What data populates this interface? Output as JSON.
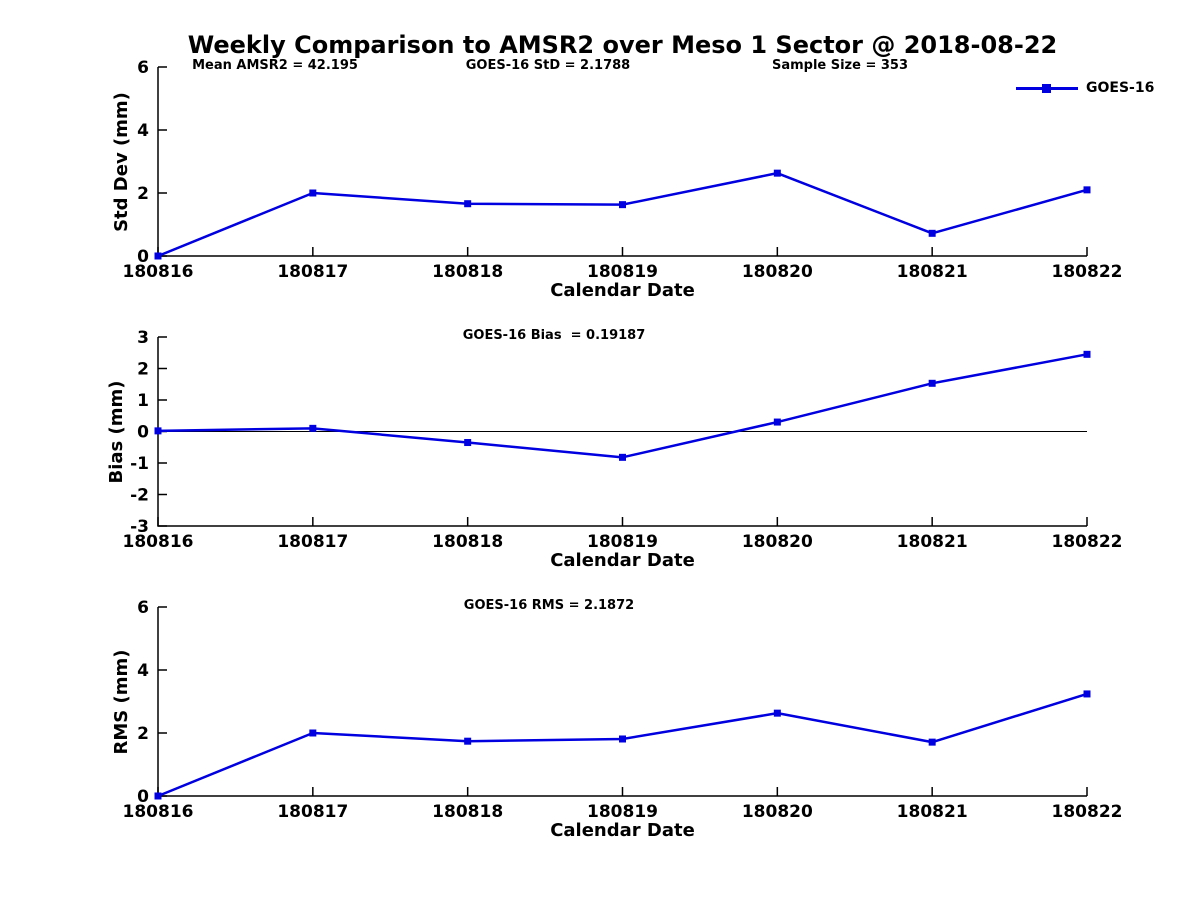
{
  "chart_data": {
    "type": "line",
    "title": "Weekly Comparison to AMSR2 over Meso 1 Sector @ 2018-08-22",
    "categories": [
      "180816",
      "180817",
      "180818",
      "180819",
      "180820",
      "180821",
      "180822"
    ],
    "xlabel": "Calendar Date",
    "grid": false,
    "marker": "square",
    "series_color": "#0000e0",
    "legend": {
      "label": "GOES-16",
      "position": "top-right"
    },
    "subplots": [
      {
        "ylabel": "Std Dev (mm)",
        "ylim": [
          0,
          6
        ],
        "yticks": [
          0,
          2,
          4,
          6
        ],
        "zero_line": false,
        "annotations": [
          {
            "text": "Mean AMSR2 = 42.195"
          },
          {
            "text": "GOES-16 StD = 2.1788"
          },
          {
            "text": "Sample Size = 353"
          }
        ],
        "series": [
          {
            "name": "GOES-16",
            "values": [
              0.0,
              2.0,
              1.66,
              1.63,
              2.63,
              0.72,
              2.1
            ]
          }
        ]
      },
      {
        "ylabel": "Bias (mm)",
        "ylim": [
          -3,
          3
        ],
        "yticks": [
          -3,
          -2,
          -1,
          0,
          1,
          2,
          3
        ],
        "zero_line": true,
        "annotations": [
          {
            "text": "GOES-16 Bias  = 0.19187"
          }
        ],
        "series": [
          {
            "name": "GOES-16",
            "values": [
              0.02,
              0.1,
              -0.35,
              -0.82,
              0.3,
              1.53,
              2.45
            ]
          }
        ]
      },
      {
        "ylabel": "RMS (mm)",
        "ylim": [
          0,
          6
        ],
        "yticks": [
          0,
          2,
          4,
          6
        ],
        "zero_line": false,
        "annotations": [
          {
            "text": "GOES-16 RMS = 2.1872"
          }
        ],
        "series": [
          {
            "name": "GOES-16",
            "values": [
              0.0,
              2.0,
              1.74,
              1.81,
              2.63,
              1.71,
              3.24
            ]
          }
        ]
      }
    ]
  }
}
